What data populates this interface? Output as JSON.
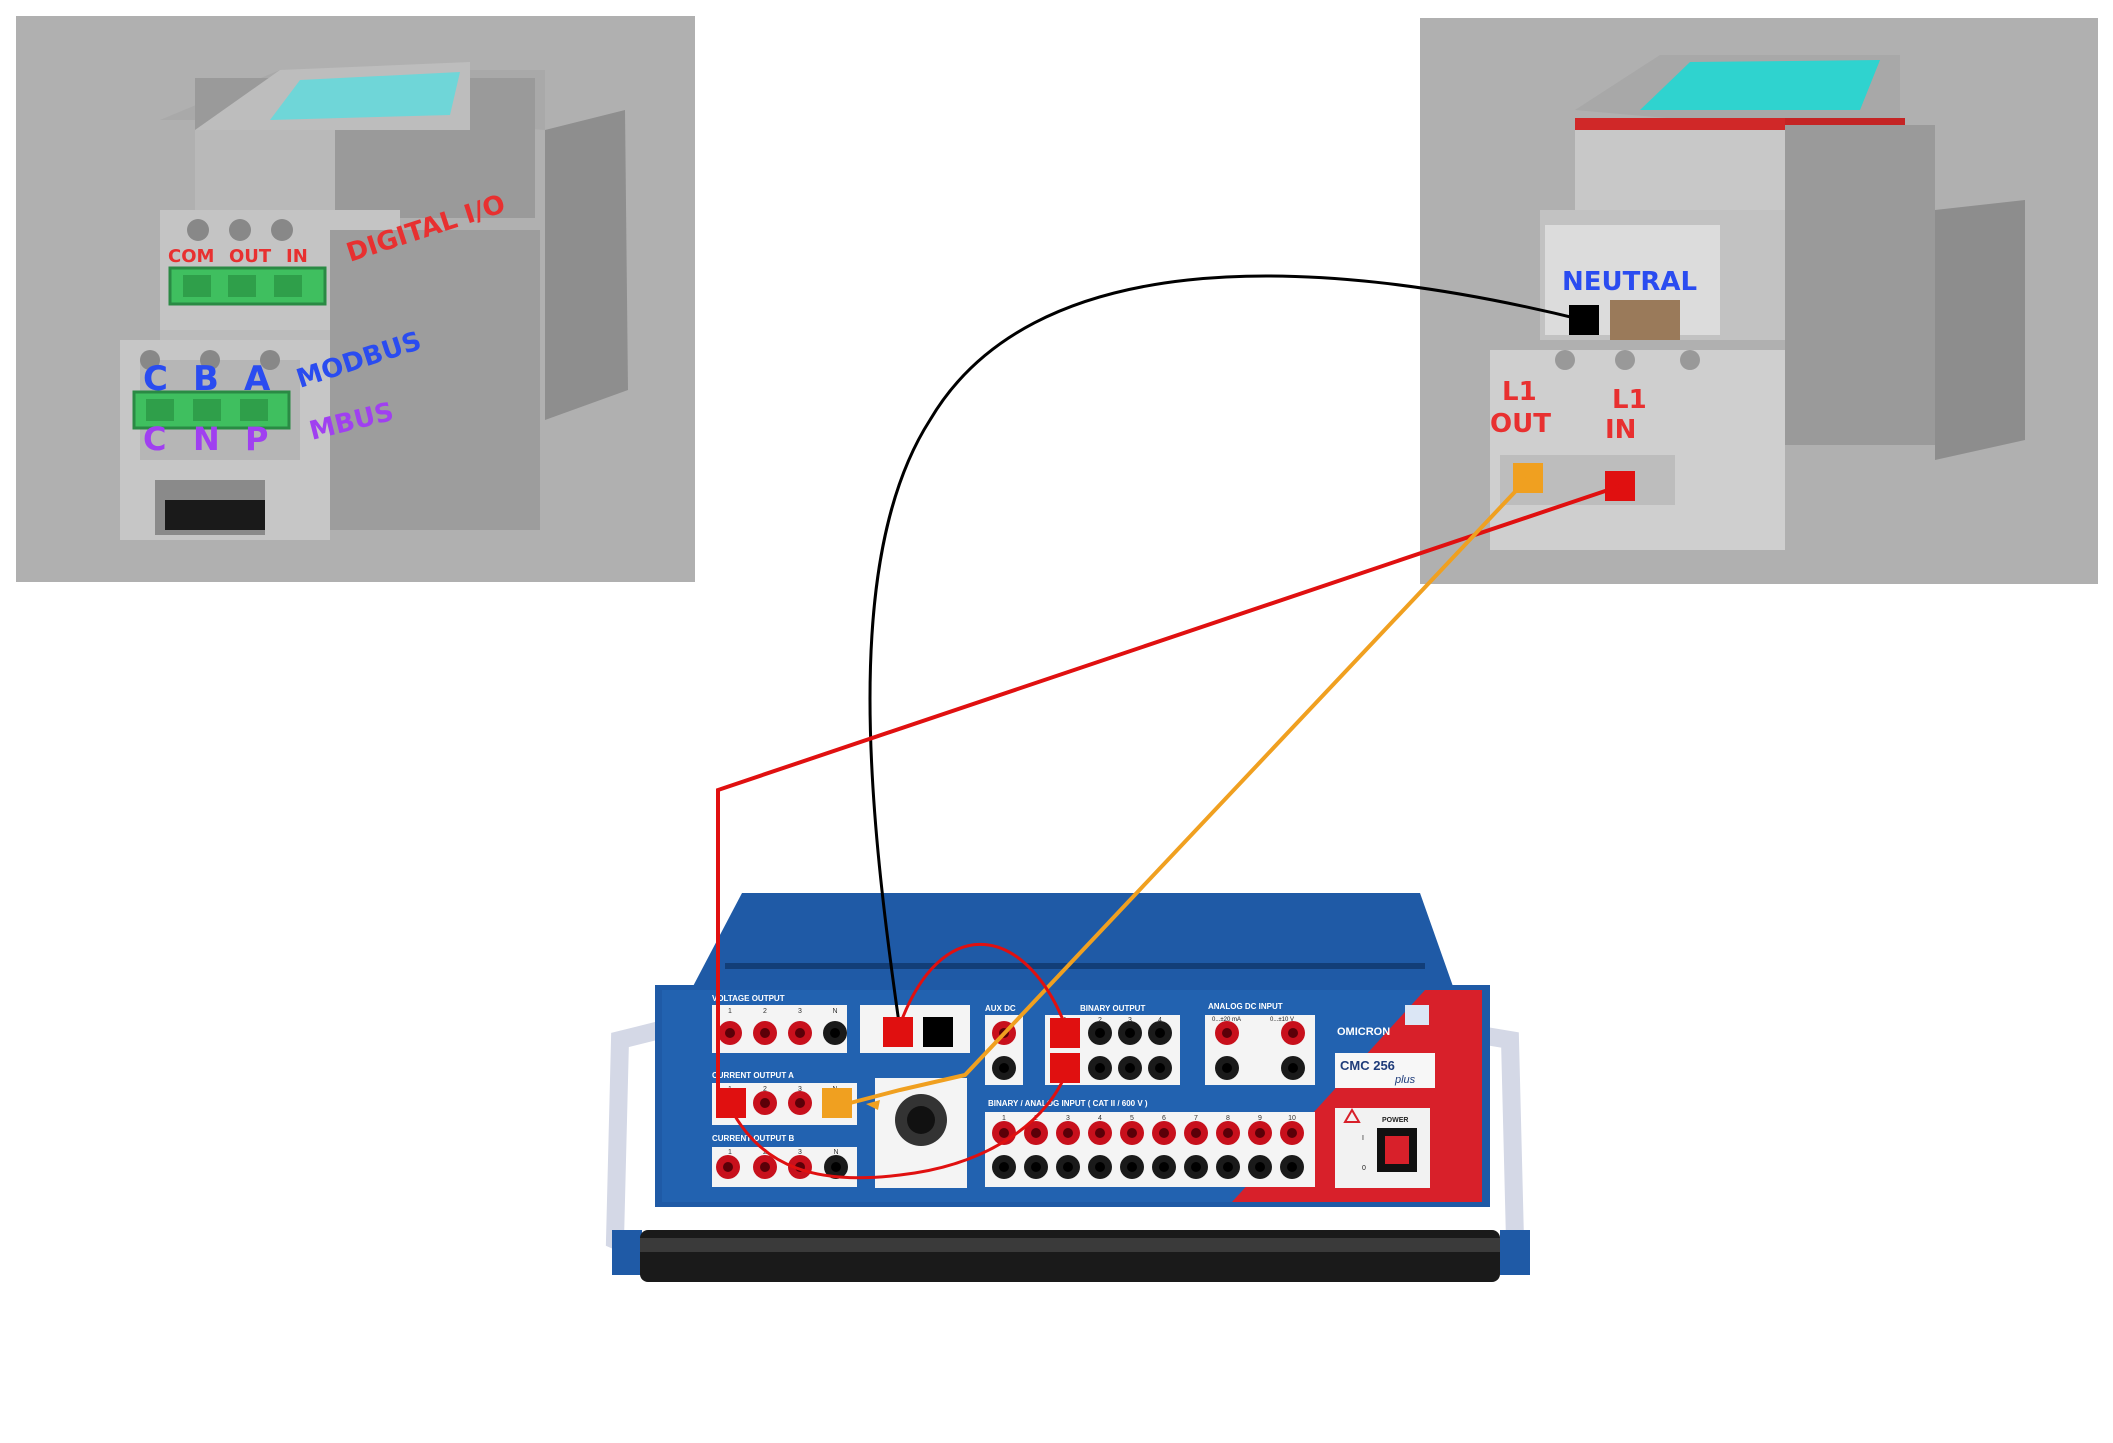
{
  "meter_left": {
    "terminal_labels_top": [
      "COM",
      "OUT",
      "IN"
    ],
    "digital_io_label": "DIGITAL I/O",
    "modbus_pins": [
      "C",
      "B",
      "A"
    ],
    "modbus_label": "MODBUS",
    "mbus_pins": [
      "C",
      "N",
      "P"
    ],
    "mbus_label": "MBUS"
  },
  "meter_right": {
    "neutral_label": "NEUTRAL",
    "l1_out_label": [
      "L1",
      "OUT"
    ],
    "l1_in_label": [
      "L1",
      "IN"
    ]
  },
  "test_set": {
    "brand": "OMICRON",
    "model": "CMC 256",
    "model_suffix": "plus",
    "voltage_output_label": "VOLTAGE OUTPUT",
    "current_output_a_label": "CURRENT OUTPUT A",
    "current_output_b_label": "CURRENT OUTPUT B",
    "aux_dc_label": "AUX DC",
    "binary_output_label": "BINARY OUTPUT",
    "analog_dc_input_label": "ANALOG DC INPUT",
    "analog_range_1": "0...±20 mA",
    "analog_range_2": "0...±10 V",
    "binary_input_label": "BINARY / ANALOG INPUT ( CAT II / 600 V )",
    "power_label": "POWER",
    "channel_numbers_4": [
      "1",
      "2",
      "3",
      "N"
    ],
    "binary_out_numbers": [
      "1",
      "2",
      "3",
      "4"
    ],
    "binary_in_numbers": [
      "1",
      "2",
      "3",
      "4",
      "5",
      "6",
      "7",
      "8",
      "9",
      "10"
    ],
    "power_states": [
      "I",
      "0"
    ]
  },
  "colors": {
    "wire_red": "#e01010",
    "wire_orange": "#f0a020",
    "wire_black": "#000000",
    "panel_blue": "#1f5aa6",
    "terminal_green": "#3fbf5f",
    "label_red": "#e83030",
    "label_blue": "#2a4cf0",
    "label_purple": "#a040f0"
  }
}
